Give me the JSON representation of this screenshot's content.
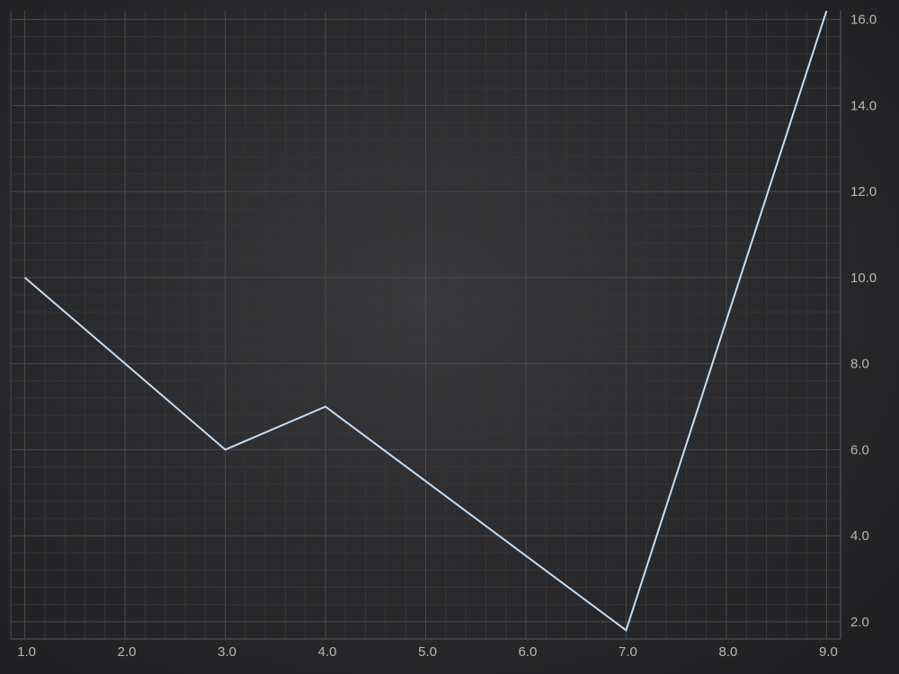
{
  "chart_data": {
    "type": "line",
    "title": "",
    "xlabel": "",
    "ylabel": "",
    "x": [
      1.0,
      3.0,
      4.0,
      7.0,
      9.0
    ],
    "series": [
      {
        "values": [
          10.0,
          6.0,
          7.0,
          1.8,
          16.2
        ]
      }
    ],
    "xlim": [
      0.86,
      9.14
    ],
    "ylim": [
      1.6,
      16.2
    ],
    "x_ticks": [
      1.0,
      2.0,
      3.0,
      4.0,
      5.0,
      6.0,
      7.0,
      8.0,
      9.0
    ],
    "x_tick_labels": [
      "1.0",
      "2.0",
      "3.0",
      "4.0",
      "5.0",
      "6.0",
      "7.0",
      "8.0",
      "9.0"
    ],
    "y_ticks": [
      2.0,
      4.0,
      6.0,
      8.0,
      10.0,
      12.0,
      14.0,
      16.0
    ],
    "y_tick_labels": [
      "2.0",
      "4.0",
      "6.0",
      "8.0",
      "10.0",
      "12.0",
      "14.0",
      "16.0"
    ],
    "grid": true,
    "minor_grid": true,
    "y_axis_position": "right",
    "legend": "none",
    "colors": {
      "line": "#c5def5",
      "grid_major": "#4a4a4c",
      "grid_minor": "#363638",
      "tick_text": "#b8b8b8"
    }
  }
}
